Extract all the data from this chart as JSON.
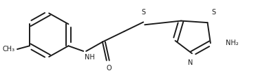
{
  "background": "#ffffff",
  "line_color": "#1a1a1a",
  "line_width": 1.4,
  "figsize": [
    3.72,
    1.07
  ],
  "dpi": 100,
  "font_size": 7.0,
  "font_size_sub": 5.5,
  "xlim": [
    0,
    372
  ],
  "ylim": [
    0,
    107
  ]
}
